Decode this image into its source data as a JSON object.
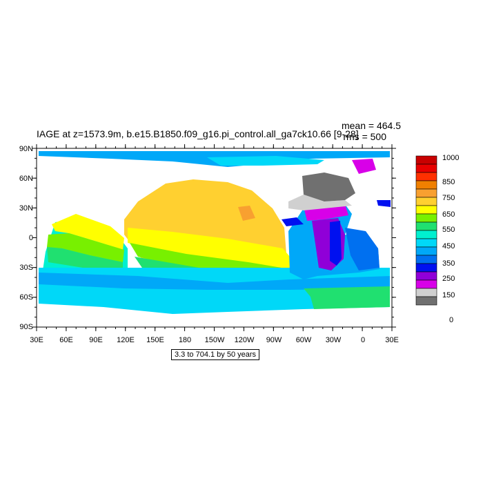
{
  "title": "IAGE at z=1573.9m, b.e15.B1850.f09_g16.pi_control.all_ga7ck10.66 [9-28]",
  "stats": {
    "mean": "mean = 464.5",
    "rms": "rms = 500"
  },
  "subtitle": "3.3 to 704.1 by 50 years",
  "lat_labels": [
    "90N",
    "60N",
    "30N",
    "0",
    "30S",
    "60S",
    "90S"
  ],
  "lon_labels": [
    "30E",
    "60E",
    "90E",
    "120E",
    "150E",
    "180",
    "150W",
    "120W",
    "90W",
    "60W",
    "30W",
    "0",
    "30E"
  ],
  "colorbar": {
    "labels": [
      "1000",
      "850",
      "750",
      "650",
      "550",
      "450",
      "350",
      "250",
      "150",
      "0"
    ],
    "colors": [
      "#c80000",
      "#e80000",
      "#ff3000",
      "#f08000",
      "#f8a030",
      "#ffd030",
      "#ffff00",
      "#78f000",
      "#20e070",
      "#00f0d0",
      "#00d8f8",
      "#00a8f8",
      "#0070f0",
      "#0010f0",
      "#9000d8",
      "#d800e8",
      "#d0d0d0",
      "#707070"
    ]
  }
}
